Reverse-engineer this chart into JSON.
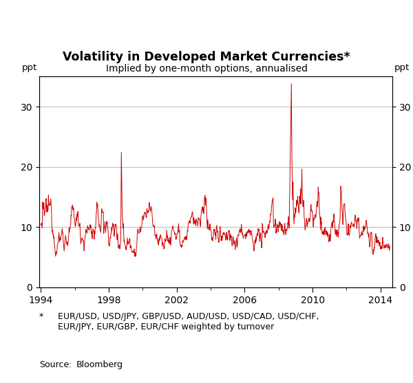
{
  "title": "Volatility in Developed Market Currencies*",
  "subtitle": "Implied by one-month options, annualised",
  "ylabel_left": "ppt",
  "ylabel_right": "ppt",
  "footnote_star": "*",
  "footnote_text": "EUR/USD, USD/JPY, GBP/USD, AUD/USD, USD/CAD, USD/CHF,\nEUR/JPY, EUR/GBP, EUR/CHF weighted by turnover",
  "source_label": "Source:",
  "source_text": "Bloomberg",
  "line_color": "#cc0000",
  "grid_color": "#c0c0c0",
  "ylim": [
    0,
    35
  ],
  "yticks": [
    0,
    10,
    20,
    30
  ],
  "xlim_start": 1993.9,
  "xlim_end": 2014.7,
  "xticks": [
    1994,
    1998,
    2002,
    2006,
    2010,
    2014
  ]
}
